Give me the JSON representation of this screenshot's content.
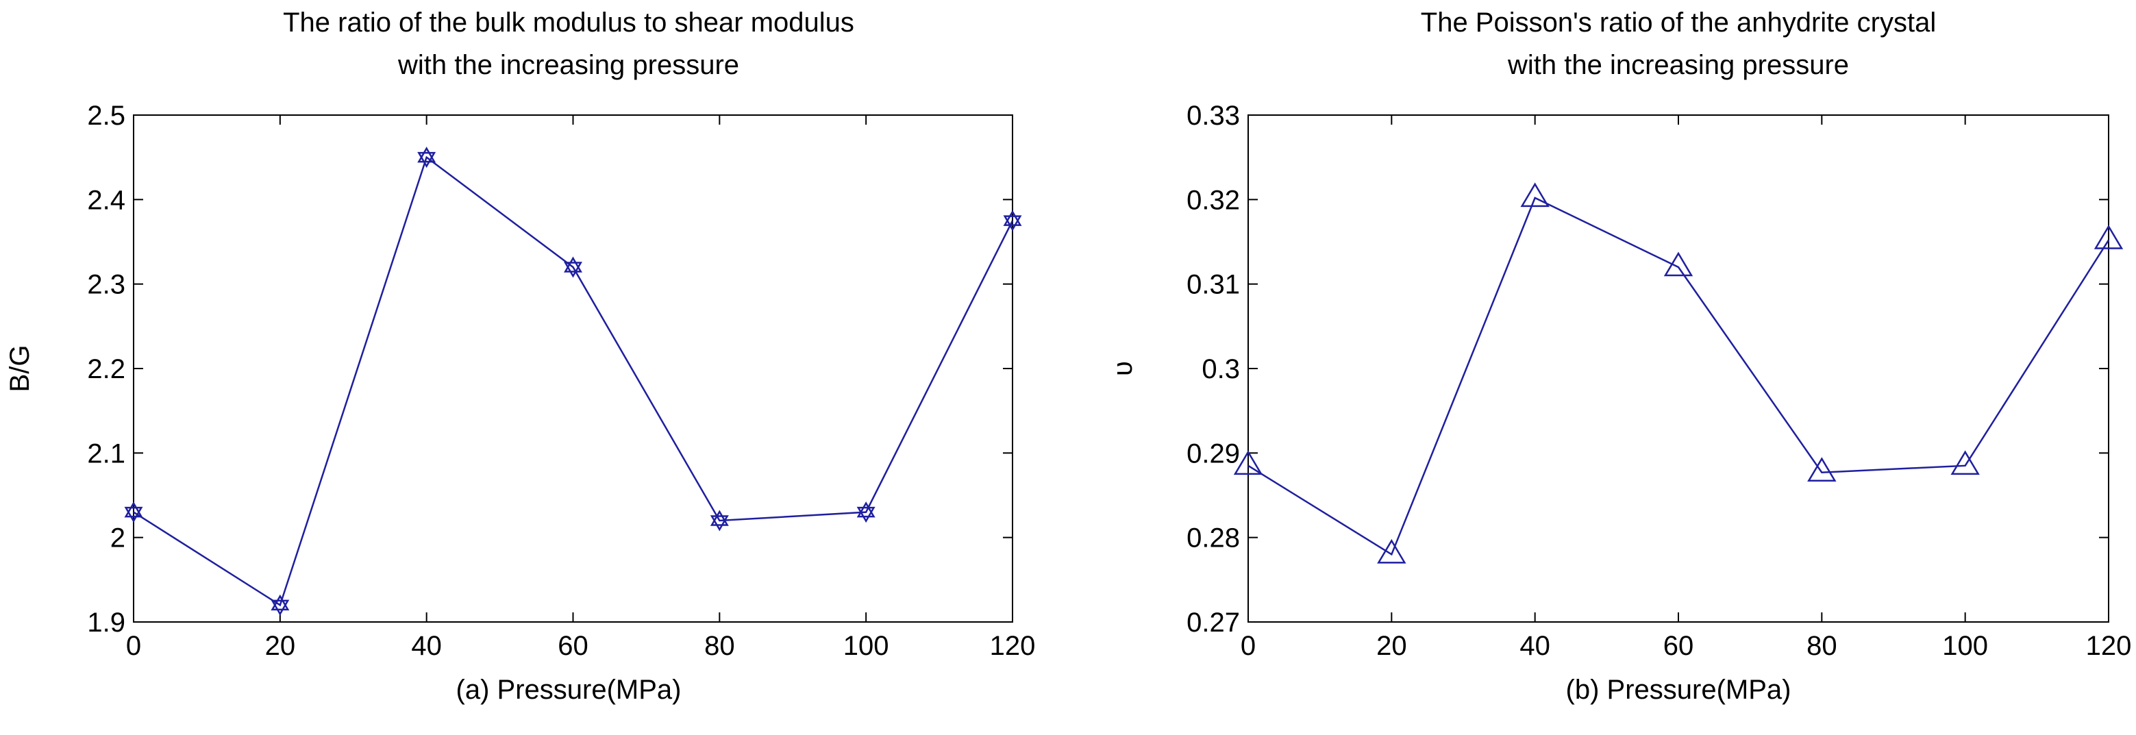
{
  "chart_data": [
    {
      "type": "line",
      "title": [
        "The ratio of the bulk modulus to shear modulus",
        "with the increasing pressure"
      ],
      "xlabel": "(a) Pressure(MPa)",
      "ylabel": "B/G",
      "x": [
        0,
        20,
        40,
        60,
        80,
        100,
        120
      ],
      "xlim": [
        0,
        120
      ],
      "ylim": [
        1.9,
        2.5
      ],
      "xticks": [
        "0",
        "20",
        "40",
        "60",
        "80",
        "100",
        "120"
      ],
      "yticks": [
        "1.9",
        "2",
        "2.1",
        "2.2",
        "2.3",
        "2.4",
        "2.5"
      ],
      "grid": false,
      "series": [
        {
          "values": [
            2.03,
            1.92,
            2.45,
            2.32,
            2.02,
            2.03,
            2.375
          ],
          "color": "#1f1fa0",
          "marker": "hexagram"
        }
      ]
    },
    {
      "type": "line",
      "title": [
        "The Poisson's ratio of the anhydrite crystal",
        "with the increasing pressure"
      ],
      "xlabel": "(b) Pressure(MPa)",
      "ylabel": "υ",
      "x": [
        0,
        20,
        40,
        60,
        80,
        100,
        120
      ],
      "xlim": [
        0,
        120
      ],
      "ylim": [
        0.27,
        0.33
      ],
      "xticks": [
        "0",
        "20",
        "40",
        "60",
        "80",
        "100",
        "120"
      ],
      "yticks": [
        "0.27",
        "0.28",
        "0.29",
        "0.3",
        "0.31",
        "0.32",
        "0.33"
      ],
      "grid": false,
      "series": [
        {
          "values": [
            0.2885,
            0.278,
            0.3202,
            0.312,
            0.2877,
            0.2885,
            0.3152
          ],
          "color": "#1f1fa0",
          "marker": "triangle"
        }
      ]
    }
  ]
}
